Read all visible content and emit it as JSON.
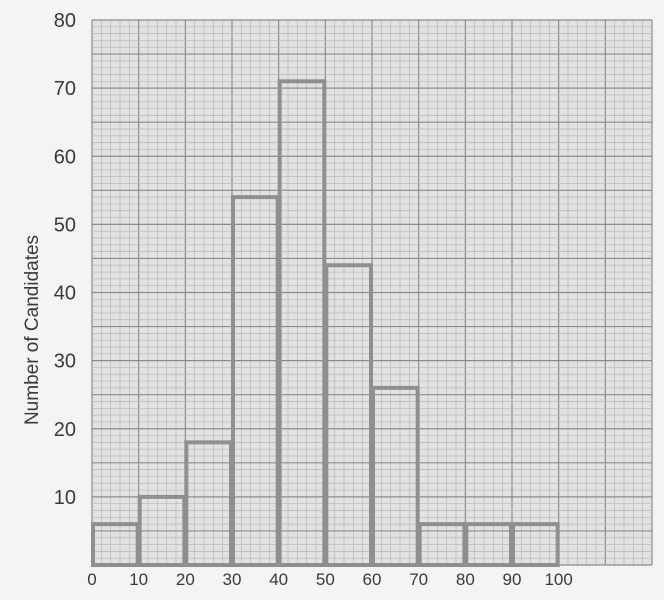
{
  "chart_data": {
    "type": "bar",
    "title": "",
    "xlabel": "",
    "ylabel": "Number of Candidates",
    "bin_edges": [
      0,
      10,
      20,
      30,
      40,
      50,
      60,
      70,
      80,
      90,
      100
    ],
    "values": [
      6,
      10,
      18,
      54,
      71,
      44,
      26,
      6,
      6,
      6
    ],
    "xlim": [
      0,
      120
    ],
    "ylim": [
      0,
      80
    ],
    "x_ticks": [
      0,
      10,
      20,
      30,
      40,
      50,
      60,
      70,
      80,
      90,
      100
    ],
    "x_tick_labels": [
      "0",
      "10",
      "20",
      "30",
      "40",
      "50",
      "60",
      "70",
      "80",
      "90",
      "100"
    ],
    "y_ticks": [
      10,
      20,
      30,
      40,
      50,
      60,
      70,
      80
    ],
    "y_tick_labels": [
      "10",
      "20",
      "30",
      "40",
      "50",
      "60",
      "70",
      "80"
    ],
    "grid": true,
    "colors": {
      "background": "#f4f4f4",
      "grid_minor": "#b8b8b8",
      "grid_major": "#8c8c8c",
      "bar_outline": "#8f8f8f",
      "text": "#3a3a3a"
    }
  }
}
